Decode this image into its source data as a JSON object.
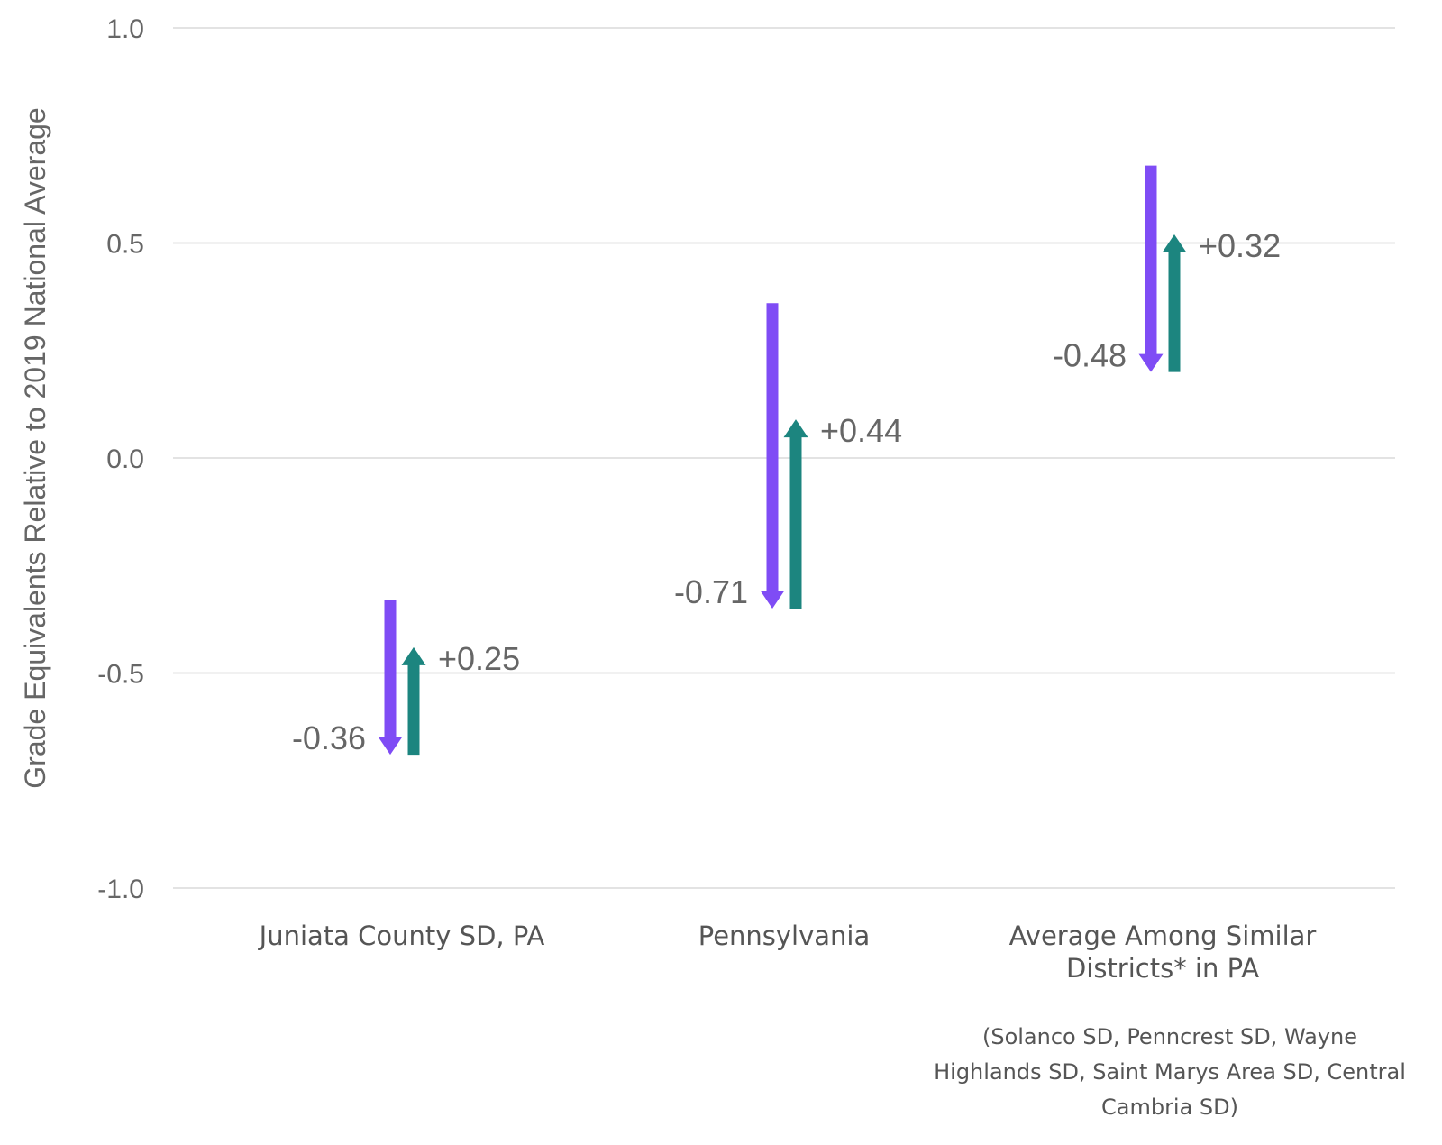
{
  "chart_data": {
    "type": "arrow",
    "ylabel": "Grade Equivalents Relative to 2019 National Average",
    "ylim": [
      -1.0,
      1.0
    ],
    "yticks": [
      1.0,
      0.5,
      0.0,
      -0.5,
      -1.0
    ],
    "ytick_labels": [
      "1.0",
      "0.5",
      "0.0",
      "-0.5",
      "-1.0"
    ],
    "grid": true,
    "categories": [
      {
        "label_lines": [
          "Juniata County SD, PA"
        ],
        "note_lines": []
      },
      {
        "label_lines": [
          "Pennsylvania"
        ],
        "note_lines": []
      },
      {
        "label_lines": [
          "Average Among Similar",
          "Districts* in PA"
        ],
        "note_lines": [
          "(Solanco SD, Penncrest SD, Wayne",
          "Highlands SD, Saint Marys Area SD, Central",
          "Cambria SD)"
        ]
      }
    ],
    "series": [
      {
        "start": [
          -0.33,
          0.36,
          0.68
        ],
        "change": [
          -0.36,
          -0.71,
          -0.48
        ],
        "labels": [
          "-0.36",
          "-0.71",
          "-0.48"
        ],
        "color": "#7f4cf5"
      },
      {
        "start": [
          -0.69,
          -0.35,
          0.2
        ],
        "change": [
          0.25,
          0.44,
          0.32
        ],
        "labels": [
          "+0.25",
          "+0.44",
          "+0.32"
        ],
        "color": "#1c857f"
      }
    ],
    "colors": {
      "grid": "#e3e3e3",
      "text": "#666666"
    }
  }
}
